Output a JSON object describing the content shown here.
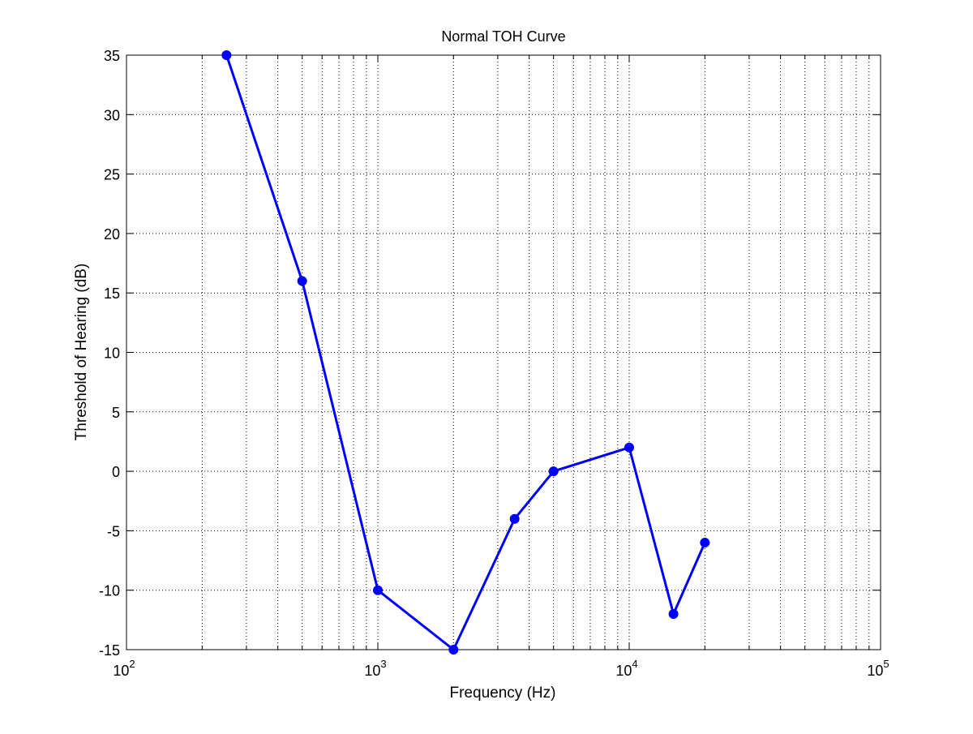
{
  "chart_data": {
    "type": "line",
    "title": "Normal TOH Curve",
    "xlabel": "Frequency (Hz)",
    "ylabel": "Threshold of Hearing (dB)",
    "xscale": "log",
    "xlim": [
      100,
      100000
    ],
    "ylim": [
      -15,
      35
    ],
    "grid": true,
    "x_ticks": [
      {
        "value": 100,
        "base": "10",
        "exp": "2"
      },
      {
        "value": 1000,
        "base": "10",
        "exp": "3"
      },
      {
        "value": 10000,
        "base": "10",
        "exp": "4"
      },
      {
        "value": 100000,
        "base": "10",
        "exp": "5"
      }
    ],
    "y_ticks": [
      -15,
      -10,
      -5,
      0,
      5,
      10,
      15,
      20,
      25,
      30,
      35
    ],
    "y_tick_labels": [
      "-15",
      "-10",
      "-5",
      "0",
      "5",
      "10",
      "15",
      "20",
      "25",
      "30",
      "35"
    ],
    "series": [
      {
        "color": "#0000ff",
        "x": [
          250,
          500,
          1000,
          2000,
          3500,
          5000,
          10000,
          15000,
          20000
        ],
        "y": [
          35,
          16,
          -10,
          -15,
          -4,
          0,
          2,
          -12,
          -6
        ]
      }
    ]
  }
}
